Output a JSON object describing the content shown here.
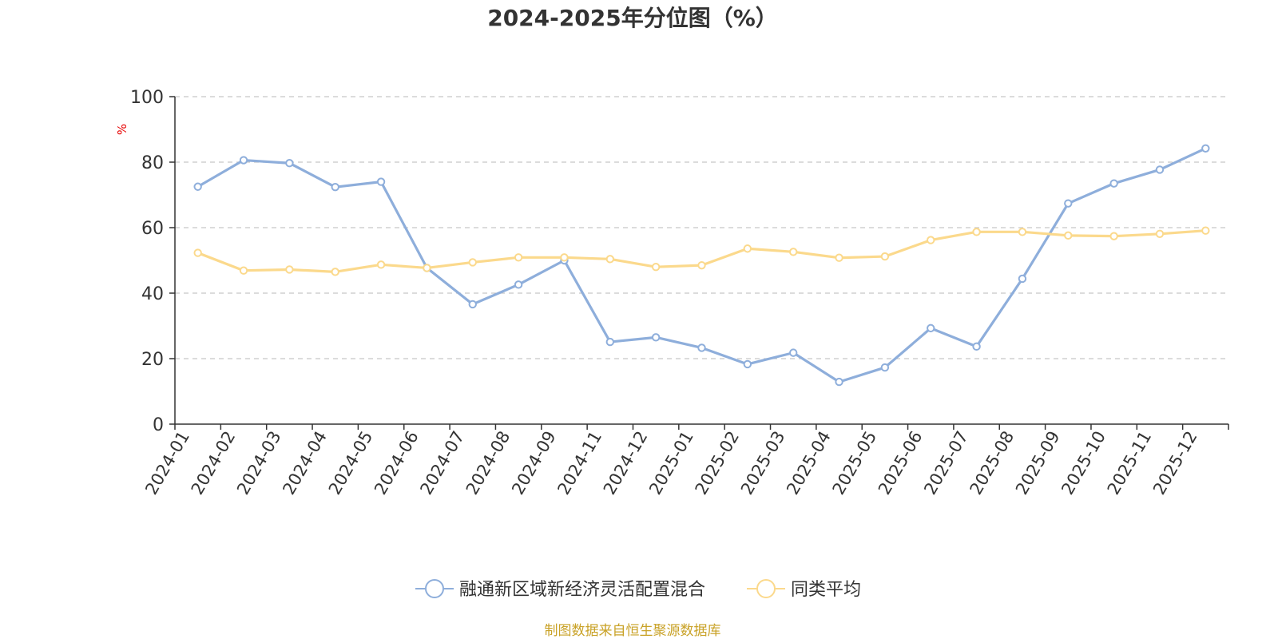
{
  "chart_data": {
    "type": "line",
    "title": "2024-2025年分位图（%）",
    "ylabel": "%",
    "ylim": [
      0,
      100
    ],
    "yticks": [
      0,
      20,
      40,
      60,
      80,
      100
    ],
    "grid": true,
    "legend_position": "bottom",
    "categories": [
      "2024-01",
      "2024-02",
      "2024-03",
      "2024-04",
      "2024-05",
      "2024-06",
      "2024-07",
      "2024-08",
      "2024-09",
      "2024-11",
      "2024-12",
      "2025-01",
      "2025-02",
      "2025-03",
      "2025-04",
      "2025-05",
      "2025-06",
      "2025-07",
      "2025-08",
      "2025-09",
      "2025-10",
      "2025-11",
      "2025-12"
    ],
    "series": [
      {
        "name": "融通新区域新经济灵活配置混合",
        "color": "#8eaedb",
        "values": [
          72.5,
          80.6,
          79.7,
          72.4,
          74.0,
          47.7,
          36.6,
          42.6,
          50.0,
          25.1,
          26.5,
          23.3,
          18.3,
          21.8,
          12.9,
          17.3,
          29.3,
          23.7,
          44.4,
          67.4,
          73.5,
          77.7,
          84.2
        ]
      },
      {
        "name": "同类平均",
        "color": "#fbd98c",
        "values": [
          52.3,
          46.9,
          47.2,
          46.5,
          48.7,
          47.7,
          49.4,
          50.9,
          50.9,
          50.4,
          48.0,
          48.5,
          53.6,
          52.6,
          50.8,
          51.2,
          56.2,
          58.7,
          58.7,
          57.6,
          57.4,
          58.1,
          59.1
        ]
      }
    ],
    "source": "制图数据来自恒生聚源数据库"
  }
}
